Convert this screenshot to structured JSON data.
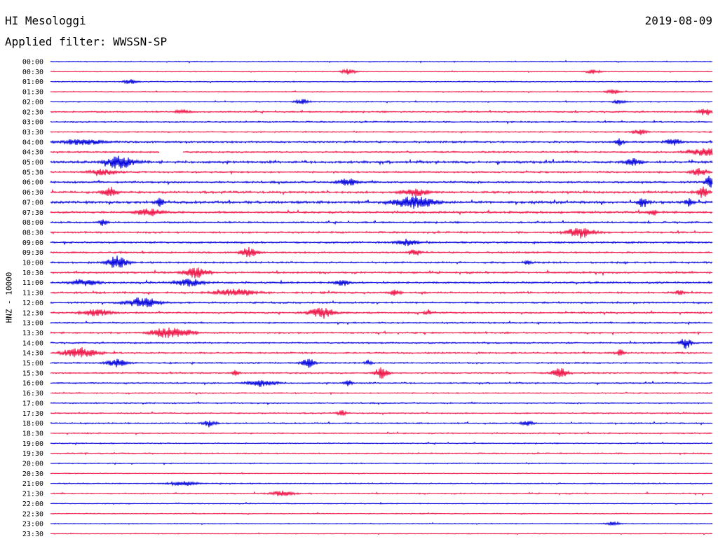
{
  "header": {
    "station": "HI Mesologgi",
    "date": "2019-08-09",
    "filter_prefix": "Applied filter: ",
    "filter": "WWSSN-SP",
    "y_label": "HNZ - 10000"
  },
  "chart_data": {
    "type": "line",
    "title": "HI Mesologgi",
    "subtitle": "Applied filter: WWSSN-SP",
    "date": "2019-08-09",
    "ylabel": "HNZ - 10000",
    "colors": [
      "#0000dd",
      "#ee1144"
    ],
    "rows": [
      {
        "time": "00:00",
        "noise": 1.0,
        "events": []
      },
      {
        "time": "00:30",
        "noise": 0.8,
        "events": [
          {
            "t": 0.45,
            "amp": 4,
            "dur": 0.01
          },
          {
            "t": 0.82,
            "amp": 3,
            "dur": 0.01
          }
        ]
      },
      {
        "time": "01:00",
        "noise": 1.1,
        "events": [
          {
            "t": 0.12,
            "amp": 3,
            "dur": 0.01
          }
        ]
      },
      {
        "time": "01:30",
        "noise": 1.0,
        "events": [
          {
            "t": 0.85,
            "amp": 3,
            "dur": 0.01
          }
        ]
      },
      {
        "time": "02:00",
        "noise": 1.1,
        "events": [
          {
            "t": 0.38,
            "amp": 4,
            "dur": 0.01
          },
          {
            "t": 0.86,
            "amp": 3,
            "dur": 0.01
          }
        ]
      },
      {
        "time": "02:30",
        "noise": 1.6,
        "events": [
          {
            "t": 0.2,
            "amp": 3,
            "dur": 0.01
          },
          {
            "t": 0.99,
            "amp": 5,
            "dur": 0.01
          }
        ]
      },
      {
        "time": "03:00",
        "noise": 1.6,
        "events": []
      },
      {
        "time": "03:30",
        "noise": 1.4,
        "events": [
          {
            "t": 0.89,
            "amp": 4,
            "dur": 0.01
          }
        ]
      },
      {
        "time": "04:00",
        "noise": 2.0,
        "events": [
          {
            "t": 0.05,
            "amp": 4,
            "dur": 0.03
          },
          {
            "t": 0.86,
            "amp": 6,
            "dur": 0.006
          },
          {
            "t": 0.94,
            "amp": 5,
            "dur": 0.01
          }
        ]
      },
      {
        "time": "04:30",
        "noise": 1.8,
        "gap": [
          0.165,
          0.2
        ],
        "events": [
          {
            "t": 0.99,
            "amp": 5,
            "dur": 0.025
          }
        ]
      },
      {
        "time": "05:00",
        "noise": 2.6,
        "events": [
          {
            "t": 0.105,
            "amp": 9,
            "dur": 0.02
          },
          {
            "t": 0.88,
            "amp": 5,
            "dur": 0.01
          }
        ]
      },
      {
        "time": "05:30",
        "noise": 1.8,
        "events": [
          {
            "t": 0.08,
            "amp": 4,
            "dur": 0.02
          },
          {
            "t": 0.98,
            "amp": 6,
            "dur": 0.01
          }
        ]
      },
      {
        "time": "06:00",
        "noise": 2.0,
        "events": [
          {
            "t": 0.45,
            "amp": 5,
            "dur": 0.015
          },
          {
            "t": 0.995,
            "amp": 9,
            "dur": 0.006
          }
        ]
      },
      {
        "time": "06:30",
        "noise": 2.4,
        "events": [
          {
            "t": 0.09,
            "amp": 9,
            "dur": 0.01
          },
          {
            "t": 0.55,
            "amp": 5,
            "dur": 0.02
          },
          {
            "t": 0.985,
            "amp": 8,
            "dur": 0.008
          }
        ]
      },
      {
        "time": "07:00",
        "noise": 2.8,
        "events": [
          {
            "t": 0.165,
            "amp": 6,
            "dur": 0.006
          },
          {
            "t": 0.55,
            "amp": 8,
            "dur": 0.03
          },
          {
            "t": 0.895,
            "amp": 8,
            "dur": 0.006
          },
          {
            "t": 0.965,
            "amp": 5,
            "dur": 0.006
          }
        ]
      },
      {
        "time": "07:30",
        "noise": 2.2,
        "events": [
          {
            "t": 0.15,
            "amp": 5,
            "dur": 0.02
          },
          {
            "t": 0.91,
            "amp": 5,
            "dur": 0.006
          }
        ]
      },
      {
        "time": "08:00",
        "noise": 1.8,
        "events": [
          {
            "t": 0.08,
            "amp": 5,
            "dur": 0.006
          }
        ]
      },
      {
        "time": "08:30",
        "noise": 2.0,
        "events": [
          {
            "t": 0.8,
            "amp": 7,
            "dur": 0.02
          }
        ]
      },
      {
        "time": "09:00",
        "noise": 2.0,
        "events": [
          {
            "t": 0.54,
            "amp": 5,
            "dur": 0.015
          }
        ]
      },
      {
        "time": "09:30",
        "noise": 1.8,
        "events": [
          {
            "t": 0.3,
            "amp": 7,
            "dur": 0.012
          },
          {
            "t": 0.55,
            "amp": 5,
            "dur": 0.008
          }
        ]
      },
      {
        "time": "10:00",
        "noise": 2.0,
        "events": [
          {
            "t": 0.1,
            "amp": 9,
            "dur": 0.014
          },
          {
            "t": 0.72,
            "amp": 4,
            "dur": 0.005
          }
        ]
      },
      {
        "time": "10:30",
        "noise": 2.0,
        "events": [
          {
            "t": 0.22,
            "amp": 7,
            "dur": 0.018
          }
        ]
      },
      {
        "time": "11:00",
        "noise": 2.0,
        "events": [
          {
            "t": 0.05,
            "amp": 4,
            "dur": 0.02
          },
          {
            "t": 0.21,
            "amp": 5,
            "dur": 0.02
          },
          {
            "t": 0.44,
            "amp": 5,
            "dur": 0.01
          }
        ]
      },
      {
        "time": "11:30",
        "noise": 2.0,
        "events": [
          {
            "t": 0.28,
            "amp": 5,
            "dur": 0.03
          },
          {
            "t": 0.52,
            "amp": 4,
            "dur": 0.008
          },
          {
            "t": 0.95,
            "amp": 4,
            "dur": 0.006
          }
        ]
      },
      {
        "time": "12:00",
        "noise": 1.8,
        "events": [
          {
            "t": 0.14,
            "amp": 7,
            "dur": 0.025
          }
        ]
      },
      {
        "time": "12:30",
        "noise": 1.8,
        "events": [
          {
            "t": 0.07,
            "amp": 5,
            "dur": 0.02
          },
          {
            "t": 0.41,
            "amp": 8,
            "dur": 0.018
          },
          {
            "t": 0.57,
            "amp": 4,
            "dur": 0.006
          }
        ]
      },
      {
        "time": "13:00",
        "noise": 1.6,
        "events": []
      },
      {
        "time": "13:30",
        "noise": 1.8,
        "events": [
          {
            "t": 0.17,
            "amp": 7,
            "dur": 0.018
          },
          {
            "t": 0.2,
            "amp": 5,
            "dur": 0.02
          }
        ]
      },
      {
        "time": "14:00",
        "noise": 1.6,
        "events": [
          {
            "t": 0.96,
            "amp": 9,
            "dur": 0.008
          }
        ]
      },
      {
        "time": "14:30",
        "noise": 1.8,
        "events": [
          {
            "t": 0.045,
            "amp": 7,
            "dur": 0.025
          },
          {
            "t": 0.86,
            "amp": 5,
            "dur": 0.006
          }
        ]
      },
      {
        "time": "15:00",
        "noise": 1.6,
        "events": [
          {
            "t": 0.1,
            "amp": 6,
            "dur": 0.014
          },
          {
            "t": 0.39,
            "amp": 7,
            "dur": 0.01
          },
          {
            "t": 0.48,
            "amp": 4,
            "dur": 0.005
          }
        ]
      },
      {
        "time": "15:30",
        "noise": 1.6,
        "events": [
          {
            "t": 0.28,
            "amp": 4,
            "dur": 0.005
          },
          {
            "t": 0.5,
            "amp": 8,
            "dur": 0.01
          },
          {
            "t": 0.77,
            "amp": 7,
            "dur": 0.012
          }
        ]
      },
      {
        "time": "16:00",
        "noise": 1.4,
        "events": [
          {
            "t": 0.32,
            "amp": 5,
            "dur": 0.02
          },
          {
            "t": 0.45,
            "amp": 4,
            "dur": 0.006
          }
        ]
      },
      {
        "time": "16:30",
        "noise": 1.3,
        "events": []
      },
      {
        "time": "17:00",
        "noise": 1.3,
        "events": []
      },
      {
        "time": "17:30",
        "noise": 1.4,
        "events": [
          {
            "t": 0.44,
            "amp": 4,
            "dur": 0.006
          }
        ]
      },
      {
        "time": "18:00",
        "noise": 1.5,
        "events": [
          {
            "t": 0.24,
            "amp": 4,
            "dur": 0.01
          },
          {
            "t": 0.72,
            "amp": 3,
            "dur": 0.01
          }
        ]
      },
      {
        "time": "18:30",
        "noise": 1.3,
        "events": []
      },
      {
        "time": "19:00",
        "noise": 1.2,
        "events": []
      },
      {
        "time": "19:30",
        "noise": 1.3,
        "events": []
      },
      {
        "time": "20:00",
        "noise": 1.2,
        "events": []
      },
      {
        "time": "20:30",
        "noise": 1.0,
        "events": []
      },
      {
        "time": "21:00",
        "noise": 1.3,
        "events": [
          {
            "t": 0.2,
            "amp": 3,
            "dur": 0.02
          }
        ]
      },
      {
        "time": "21:30",
        "noise": 1.3,
        "events": [
          {
            "t": 0.35,
            "amp": 4,
            "dur": 0.015
          }
        ]
      },
      {
        "time": "22:00",
        "noise": 1.0,
        "events": []
      },
      {
        "time": "22:30",
        "noise": 1.0,
        "events": []
      },
      {
        "time": "23:00",
        "noise": 1.0,
        "events": [
          {
            "t": 0.85,
            "amp": 3,
            "dur": 0.01
          }
        ]
      },
      {
        "time": "23:30",
        "noise": 0.9,
        "events": []
      }
    ]
  }
}
